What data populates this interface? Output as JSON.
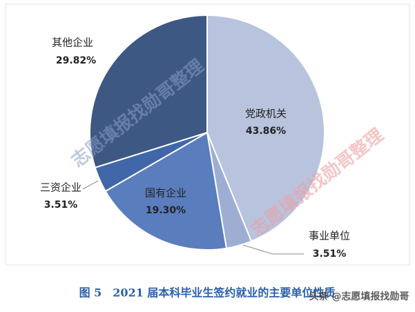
{
  "chart_data": {
    "type": "pie",
    "title": "图 5　2021 届本科毕业生签约就业的主要单位性质",
    "categories": [
      "党政机关",
      "事业单位",
      "国有企业",
      "三资企业",
      "其他企业"
    ],
    "values": [
      43.86,
      3.51,
      19.3,
      3.51,
      29.82
    ],
    "value_labels": [
      "43.86%",
      "3.51%",
      "19.30%",
      "3.51%",
      "29.82%"
    ],
    "colors": [
      "#b8c3de",
      "#9eaed3",
      "#5a7dbd",
      "#4167a8",
      "#3e5884"
    ],
    "watermarks": [
      "志愿填报找勋哥整理",
      "志愿填报找勋哥整理",
      "头条 @志愿填报找勋哥"
    ]
  }
}
